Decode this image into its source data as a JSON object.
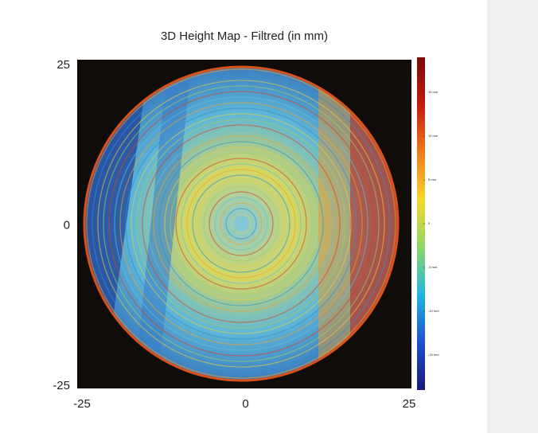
{
  "chart_data": {
    "type": "heatmap",
    "title": "3D Height Map - Filtred (in mm)",
    "xlim": [
      -25,
      25
    ],
    "xticks": [
      -25,
      0,
      25
    ],
    "ylim": [
      -25,
      25
    ],
    "yticks": [
      -25,
      0,
      25
    ],
    "clim": [
      -19,
      19
    ],
    "cticks": [
      {
        "value": 15,
        "label": "15 mm"
      },
      {
        "value": 10,
        "label": "10 mm"
      },
      {
        "value": 5,
        "label": "5 mm"
      },
      0,
      {
        "value": -5,
        "label": "-5 mm"
      },
      {
        "value": -10,
        "label": "-10 mm"
      },
      {
        "value": -15,
        "label": "-15 mm"
      }
    ],
    "colormap": [
      "#1a1a7a",
      "#1f4fd0",
      "#1fb6e0",
      "#8fd66a",
      "#f5d82a",
      "#f07a1a",
      "#c41a10",
      "#7a0a08"
    ]
  }
}
